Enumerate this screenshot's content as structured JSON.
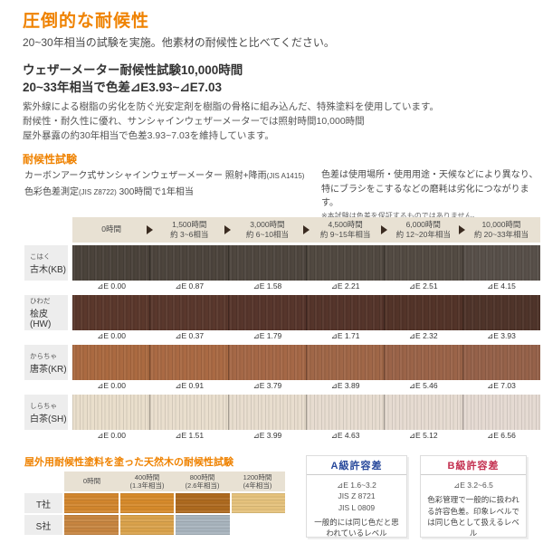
{
  "colors": {
    "accent_orange": "#ef8200",
    "header_beige": "#e8e1d3",
    "label_gray": "#ededed",
    "box_a_title": "#27489b",
    "box_b_title": "#c33050"
  },
  "intro": {
    "title": "圧倒的な耐候性",
    "lead": "20~30年相当の試験を実施。他素材の耐候性と比べてください。",
    "headline1": "ウェザーメーター耐候性試験10,000時間",
    "headline2": "20~33年相当で色差⊿E3.93~⊿E7.03",
    "body1": "紫外線による樹脂の劣化を防ぐ光安定剤を樹脂の骨格に組み込んだ、特殊塗料を使用しています。",
    "body2": "耐候性・耐久性に優れ、サンシャインウェザーメーターでは照射時間10,000時間",
    "body3": "屋外暴露の約30年相当で色差3.93~7.03を維持しています。"
  },
  "test": {
    "heading": "耐候性試験",
    "method1_main": "カーボンアーク式サンシャインウェザーメーター 照射+降雨",
    "method1_jis": "(JIS A1415)",
    "method2_a": "色彩色差測定",
    "method2_jis": "(JIS Z8722)",
    "method2_b": " 300時間で1年相当",
    "note1": "色差は使用場所・使用用途・天候などにより異なり、",
    "note2": "特にブラシをこするなどの磨耗は劣化につながります。",
    "note3": "※本試験は色差を保証するものではありません。"
  },
  "weather_table": {
    "delta_prefix": "⊿E",
    "header": [
      {
        "line1": "0時間",
        "line2": ""
      },
      {
        "line1": "1,500時間",
        "line2": "約 3~6相当"
      },
      {
        "line1": "3,000時間",
        "line2": "約 6~10相当"
      },
      {
        "line1": "4,500時間",
        "line2": "約 9~15年相当"
      },
      {
        "line1": "6,000時間",
        "line2": "約 12~20年相当"
      },
      {
        "line1": "10,000時間",
        "line2": "約 20~33年相当"
      }
    ],
    "rows": [
      {
        "kana": "こはく",
        "name": "古木(KB)",
        "values": [
          "0.00",
          "0.87",
          "1.58",
          "2.21",
          "2.51",
          "4.15"
        ],
        "swatches": [
          "#4b433b",
          "#4d453d",
          "#4f473f",
          "#514941",
          "#534b43",
          "#58504a"
        ]
      },
      {
        "kana": "ひわだ",
        "name": "桧皮(HW)",
        "values": [
          "0.00",
          "0.37",
          "1.79",
          "1.71",
          "2.32",
          "3.93"
        ],
        "swatches": [
          "#5b382c",
          "#5a382d",
          "#57362c",
          "#55352b",
          "#533429",
          "#4f342a"
        ]
      },
      {
        "kana": "からちゃ",
        "name": "唐茶(KR)",
        "values": [
          "0.00",
          "0.91",
          "3.79",
          "3.89",
          "5.46",
          "7.03"
        ],
        "swatches": [
          "#ab6a41",
          "#aa6a44",
          "#a56847",
          "#a06748",
          "#9b6449",
          "#96624a"
        ]
      },
      {
        "kana": "しらちゃ",
        "name": "白茶(SH)",
        "values": [
          "0.00",
          "1.51",
          "3.99",
          "4.63",
          "5.12",
          "6.56"
        ],
        "swatches": [
          "#e9decb",
          "#e9decd",
          "#e8ddce",
          "#e7dcd0",
          "#e6dbd1",
          "#e5dad2"
        ]
      }
    ]
  },
  "natural_wood": {
    "heading": "屋外用耐候性塗料を塗った天然木の耐候性試験",
    "header": [
      {
        "line1": "0時間",
        "line2": ""
      },
      {
        "line1": "400時間",
        "line2": "(1.3年相当)"
      },
      {
        "line1": "800時間",
        "line2": "(2.6年相当)"
      },
      {
        "line1": "1200時間",
        "line2": "(4年相当)"
      }
    ],
    "rows": [
      {
        "label": "T社",
        "swatches": [
          "#d2862e",
          "#d68a2b",
          "#ae6a1f",
          "#e5c27c"
        ]
      },
      {
        "label": "S社",
        "swatches": [
          "#c78540",
          "#daa24b",
          "#a8b4bd",
          ""
        ]
      }
    ]
  },
  "boxes": {
    "a": {
      "title": "A級許容差",
      "spec1": "⊿E 1.6~3.2",
      "spec2": "JIS Z 8721",
      "spec3": "JIS L 0809",
      "desc": "一般的には同じ色だと思われているレベル"
    },
    "b": {
      "title": "B級許容差",
      "spec1": "⊿E 3.2~6.5",
      "desc": "色彩管理で一般的に扱われる許容色差。印象レベルでは同じ色として扱えるレベル"
    }
  }
}
